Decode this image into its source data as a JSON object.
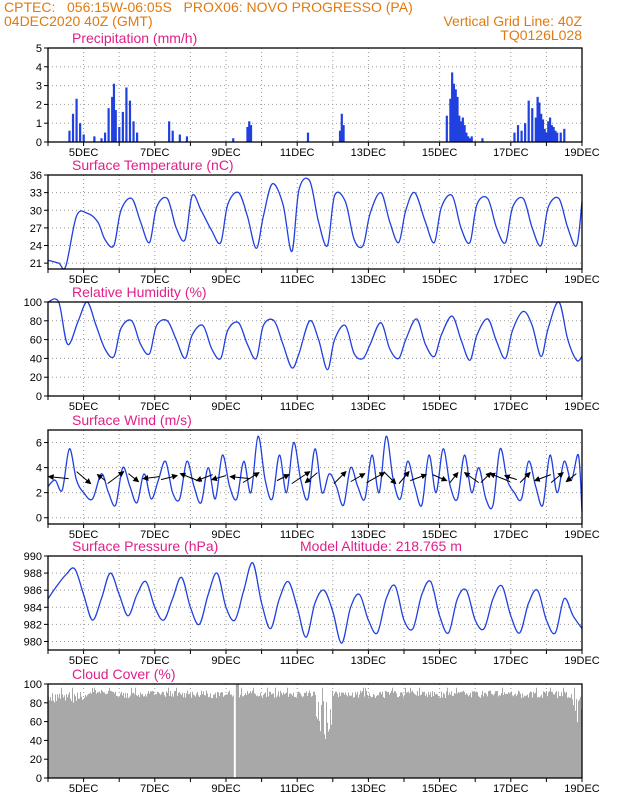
{
  "header": {
    "line1_left": "CPTEC:   056:15W-06:05S   PROX06: NOVO PROGRESSO (PA)",
    "line2_left": "04DEC2020 40Z (GMT)",
    "line2_right": "Vertical Grid Line: 40Z",
    "line3_right": "TQ0126L028"
  },
  "colors": {
    "header": "#e07a10",
    "panel_title": "#e0208a",
    "series": "#2040e0",
    "cloud": "#a8a8a8",
    "arrow": "#000000"
  },
  "x_ticks": [
    "5DEC",
    "7DEC",
    "9DEC",
    "11DEC",
    "13DEC",
    "15DEC",
    "17DEC",
    "19DEC"
  ],
  "chart_data": [
    {
      "type": "bar",
      "title": "Precipitation (mm/h)",
      "ylim": [
        0,
        5
      ],
      "yticks": [
        "0",
        "1",
        "2",
        "3",
        "4",
        "5"
      ],
      "grid": true,
      "x": [
        4.6,
        4.7,
        4.8,
        4.9,
        5.0,
        5.3,
        5.5,
        5.6,
        5.7,
        5.8,
        5.85,
        5.9,
        6.0,
        6.1,
        6.2,
        6.3,
        6.4,
        6.5,
        7.4,
        7.5,
        7.7,
        7.9,
        9.2,
        9.6,
        9.65,
        9.7,
        11.3,
        12.2,
        12.25,
        12.3,
        15.2,
        15.3,
        15.35,
        15.4,
        15.45,
        15.5,
        15.55,
        15.6,
        15.65,
        15.7,
        15.75,
        15.8,
        15.85,
        15.9,
        16.2,
        17.1,
        17.2,
        17.3,
        17.4,
        17.5,
        17.6,
        17.7,
        17.75,
        17.8,
        17.85,
        17.9,
        17.95,
        18.0,
        18.05,
        18.1,
        18.15,
        18.2,
        18.25,
        18.3,
        18.4,
        18.5
      ],
      "values": [
        0.6,
        1.5,
        2.3,
        1.0,
        0.4,
        0.3,
        0.2,
        0.5,
        1.8,
        2.4,
        3.1,
        1.7,
        0.8,
        1.6,
        2.9,
        2.2,
        1.1,
        0.5,
        1.1,
        0.6,
        0.4,
        0.3,
        0.2,
        0.8,
        1.1,
        0.9,
        0.5,
        0.6,
        1.5,
        0.9,
        1.4,
        2.3,
        3.7,
        3.1,
        2.8,
        2.4,
        1.4,
        1.1,
        1.3,
        0.9,
        0.5,
        0.3,
        0.2,
        0.3,
        0.2,
        0.5,
        0.9,
        0.6,
        1.0,
        2.2,
        1.8,
        1.3,
        2.4,
        2.1,
        1.5,
        1.2,
        0.7,
        0.5,
        1.1,
        1.3,
        0.9,
        0.8,
        0.6,
        0.5,
        0.5,
        0.7
      ]
    },
    {
      "type": "line",
      "title": "Surface Temperature (nC)",
      "ylim": [
        20,
        36
      ],
      "yticks": [
        "21",
        "24",
        "27",
        "30",
        "33",
        "36"
      ],
      "grid": true,
      "x": [
        4.0,
        4.3,
        4.5,
        4.8,
        5.1,
        5.4,
        5.6,
        5.85,
        6.05,
        6.35,
        6.6,
        6.85,
        7.05,
        7.35,
        7.6,
        7.85,
        8.05,
        8.3,
        8.6,
        8.85,
        9.05,
        9.35,
        9.6,
        9.85,
        10.05,
        10.3,
        10.6,
        10.85,
        11.05,
        11.35,
        11.6,
        11.85,
        12.05,
        12.35,
        12.6,
        12.85,
        13.05,
        13.35,
        13.6,
        13.85,
        14.05,
        14.3,
        14.6,
        14.85,
        15.05,
        15.35,
        15.6,
        15.85,
        16.05,
        16.35,
        16.6,
        16.85,
        17.05,
        17.35,
        17.6,
        17.85,
        18.05,
        18.35,
        18.6,
        18.85,
        19.0
      ],
      "values": [
        21.5,
        21.0,
        20.5,
        29.0,
        29.5,
        28.0,
        25.0,
        24.0,
        30.0,
        32.0,
        28.0,
        24.5,
        30.5,
        32.0,
        27.0,
        25.0,
        32.5,
        30.0,
        26.5,
        24.5,
        31.0,
        33.0,
        29.0,
        23.5,
        29.0,
        34.5,
        31.0,
        23.0,
        33.5,
        35.0,
        28.0,
        24.0,
        32.5,
        31.5,
        25.0,
        24.0,
        29.5,
        33.0,
        28.0,
        24.5,
        30.0,
        33.0,
        28.0,
        24.5,
        30.5,
        32.5,
        27.0,
        24.5,
        31.0,
        32.0,
        27.0,
        24.5,
        30.5,
        32.0,
        27.0,
        24.0,
        30.5,
        32.0,
        27.0,
        24.0,
        31.5
      ]
    },
    {
      "type": "line",
      "title": "Relative Humidity (%)",
      "ylim": [
        0,
        100
      ],
      "yticks": [
        "0",
        "20",
        "40",
        "60",
        "80",
        "100"
      ],
      "grid": true,
      "x": [
        4.0,
        4.3,
        4.55,
        4.85,
        5.1,
        5.35,
        5.6,
        5.85,
        6.05,
        6.35,
        6.6,
        6.85,
        7.05,
        7.35,
        7.6,
        7.85,
        8.05,
        8.35,
        8.6,
        8.85,
        9.05,
        9.35,
        9.6,
        9.85,
        10.05,
        10.35,
        10.6,
        10.85,
        11.05,
        11.35,
        11.6,
        11.85,
        12.05,
        12.35,
        12.6,
        12.85,
        13.05,
        13.35,
        13.6,
        13.85,
        14.05,
        14.35,
        14.6,
        14.85,
        15.05,
        15.35,
        15.6,
        15.85,
        16.05,
        16.35,
        16.6,
        16.85,
        17.05,
        17.35,
        17.6,
        17.85,
        18.05,
        18.35,
        18.6,
        18.85,
        19.0
      ],
      "values": [
        100,
        100,
        55,
        80,
        100,
        75,
        50,
        42,
        72,
        80,
        55,
        45,
        75,
        80,
        60,
        40,
        65,
        75,
        50,
        40,
        70,
        78,
        55,
        40,
        75,
        80,
        55,
        30,
        45,
        80,
        60,
        28,
        60,
        75,
        45,
        40,
        55,
        78,
        50,
        40,
        60,
        82,
        55,
        42,
        65,
        85,
        60,
        38,
        65,
        82,
        58,
        40,
        70,
        90,
        75,
        42,
        72,
        100,
        60,
        38,
        42
      ]
    },
    {
      "type": "line",
      "title": "Surface Wind (m/s)",
      "ylim": [
        -0.5,
        7
      ],
      "yticks": [
        "0",
        "2",
        "4",
        "6"
      ],
      "grid": true,
      "x": [
        4.0,
        4.2,
        4.4,
        4.6,
        4.8,
        5.0,
        5.25,
        5.5,
        5.7,
        5.9,
        6.1,
        6.3,
        6.5,
        6.7,
        6.9,
        7.1,
        7.3,
        7.5,
        7.7,
        7.9,
        8.1,
        8.3,
        8.5,
        8.7,
        8.9,
        9.1,
        9.3,
        9.5,
        9.7,
        9.9,
        10.1,
        10.3,
        10.5,
        10.7,
        10.9,
        11.1,
        11.3,
        11.5,
        11.7,
        11.9,
        12.1,
        12.3,
        12.5,
        12.7,
        12.9,
        13.1,
        13.3,
        13.5,
        13.7,
        13.9,
        14.1,
        14.3,
        14.5,
        14.7,
        14.9,
        15.1,
        15.3,
        15.5,
        15.7,
        15.9,
        16.1,
        16.3,
        16.5,
        16.7,
        16.9,
        17.1,
        17.3,
        17.5,
        17.7,
        17.9,
        18.1,
        18.3,
        18.5,
        18.7,
        18.9,
        19.0
      ],
      "values": [
        2.5,
        3.0,
        2.2,
        5.5,
        3.0,
        2.0,
        1.5,
        3.5,
        2.0,
        1.0,
        4.0,
        2.5,
        1.2,
        3.5,
        1.5,
        3.0,
        4.5,
        2.0,
        1.5,
        4.5,
        2.5,
        1.2,
        4.0,
        1.5,
        5.0,
        2.5,
        1.5,
        4.5,
        2.0,
        6.5,
        3.0,
        1.5,
        5.0,
        2.0,
        6.0,
        3.0,
        1.5,
        5.5,
        2.0,
        3.5,
        2.5,
        1.0,
        4.0,
        2.5,
        1.5,
        5.0,
        2.0,
        6.5,
        3.0,
        1.5,
        4.5,
        2.5,
        1.0,
        5.0,
        2.0,
        5.5,
        2.5,
        1.5,
        5.0,
        2.0,
        4.0,
        1.5,
        1.0,
        5.5,
        3.0,
        2.0,
        1.5,
        4.5,
        2.5,
        1.0,
        5.0,
        2.0,
        4.5,
        3.0,
        5.0,
        0.5
      ],
      "arrows": [
        {
          "day": 4.3,
          "u": -1,
          "v": 0.1
        },
        {
          "day": 5.0,
          "u": 0.7,
          "v": -0.6
        },
        {
          "day": 5.5,
          "u": -0.4,
          "v": 0.3
        },
        {
          "day": 5.9,
          "u": 0.8,
          "v": 0.6
        },
        {
          "day": 6.4,
          "u": 0.5,
          "v": -0.4
        },
        {
          "day": 6.9,
          "u": -0.8,
          "v": -0.1
        },
        {
          "day": 7.4,
          "u": 0.8,
          "v": 0.2
        },
        {
          "day": 8.0,
          "u": -1,
          "v": 0.4
        },
        {
          "day": 8.4,
          "u": -0.8,
          "v": -0.3
        },
        {
          "day": 8.8,
          "u": -0.7,
          "v": -0.2
        },
        {
          "day": 9.4,
          "u": -1,
          "v": 0.1
        },
        {
          "day": 9.7,
          "u": 0.8,
          "v": 0.5
        },
        {
          "day": 10.6,
          "u": 0.6,
          "v": 0.3
        },
        {
          "day": 11.1,
          "u": 0.9,
          "v": 0.6
        },
        {
          "day": 11.4,
          "u": -0.6,
          "v": -0.5
        },
        {
          "day": 12.2,
          "u": 0.6,
          "v": 0.6
        },
        {
          "day": 12.7,
          "u": 0.7,
          "v": 0.4
        },
        {
          "day": 13.2,
          "u": 0.9,
          "v": 0.5
        },
        {
          "day": 13.6,
          "u": 0.6,
          "v": -0.6
        },
        {
          "day": 14.0,
          "u": 0.5,
          "v": 0.6
        },
        {
          "day": 14.4,
          "u": 0.8,
          "v": 0.3
        },
        {
          "day": 15.0,
          "u": 0.7,
          "v": -0.3
        },
        {
          "day": 15.4,
          "u": 0.4,
          "v": 0.5
        },
        {
          "day": 15.9,
          "u": -0.7,
          "v": 0.5
        },
        {
          "day": 16.3,
          "u": 0.5,
          "v": 0.5
        },
        {
          "day": 16.7,
          "u": -1,
          "v": 0.4
        },
        {
          "day": 17.0,
          "u": -0.6,
          "v": 0.2
        },
        {
          "day": 17.4,
          "u": 0.5,
          "v": 0.5
        },
        {
          "day": 17.9,
          "u": -0.8,
          "v": -0.3
        },
        {
          "day": 18.3,
          "u": 0.6,
          "v": 0.5
        },
        {
          "day": 18.7,
          "u": -0.5,
          "v": -0.4
        }
      ]
    },
    {
      "type": "line",
      "title": "Surface Pressure (hPa)",
      "annotation": "Model Altitude: 218.765 m",
      "ylim": [
        979,
        990
      ],
      "yticks": [
        "980",
        "982",
        "984",
        "986",
        "988",
        "990"
      ],
      "grid": true,
      "x": [
        4.0,
        4.25,
        4.5,
        4.75,
        5.0,
        5.25,
        5.5,
        5.75,
        6.0,
        6.25,
        6.5,
        6.75,
        7.0,
        7.25,
        7.5,
        7.75,
        8.0,
        8.25,
        8.5,
        8.75,
        9.0,
        9.25,
        9.5,
        9.75,
        10.0,
        10.25,
        10.5,
        10.75,
        11.0,
        11.25,
        11.5,
        11.75,
        12.0,
        12.25,
        12.5,
        12.75,
        13.0,
        13.25,
        13.5,
        13.75,
        14.0,
        14.25,
        14.5,
        14.75,
        15.0,
        15.25,
        15.5,
        15.75,
        16.0,
        16.25,
        16.5,
        16.75,
        17.0,
        17.25,
        17.5,
        17.75,
        18.0,
        18.25,
        18.5,
        18.75,
        19.0
      ],
      "values": [
        985.0,
        986.5,
        987.8,
        988.5,
        985.5,
        982.5,
        985.0,
        988.0,
        985.5,
        983.0,
        985.5,
        987.0,
        984.0,
        982.5,
        985.0,
        987.5,
        984.0,
        982.0,
        985.5,
        988.0,
        984.0,
        982.5,
        986.0,
        989.2,
        984.5,
        981.5,
        985.0,
        987.0,
        984.0,
        980.5,
        984.5,
        986.0,
        983.5,
        979.8,
        984.0,
        985.5,
        982.5,
        981.0,
        985.0,
        986.5,
        982.5,
        981.5,
        985.5,
        987.0,
        983.0,
        981.0,
        985.0,
        986.0,
        982.5,
        981.5,
        985.0,
        986.5,
        983.0,
        981.0,
        984.5,
        986.0,
        982.5,
        981.0,
        985.0,
        983.0,
        981.5
      ]
    },
    {
      "type": "bar",
      "title": "Cloud Cover (%)",
      "ylim": [
        0,
        100
      ],
      "yticks": [
        "0",
        "20",
        "40",
        "60",
        "80",
        "100"
      ],
      "grid": false,
      "fill": "cloud"
    }
  ]
}
